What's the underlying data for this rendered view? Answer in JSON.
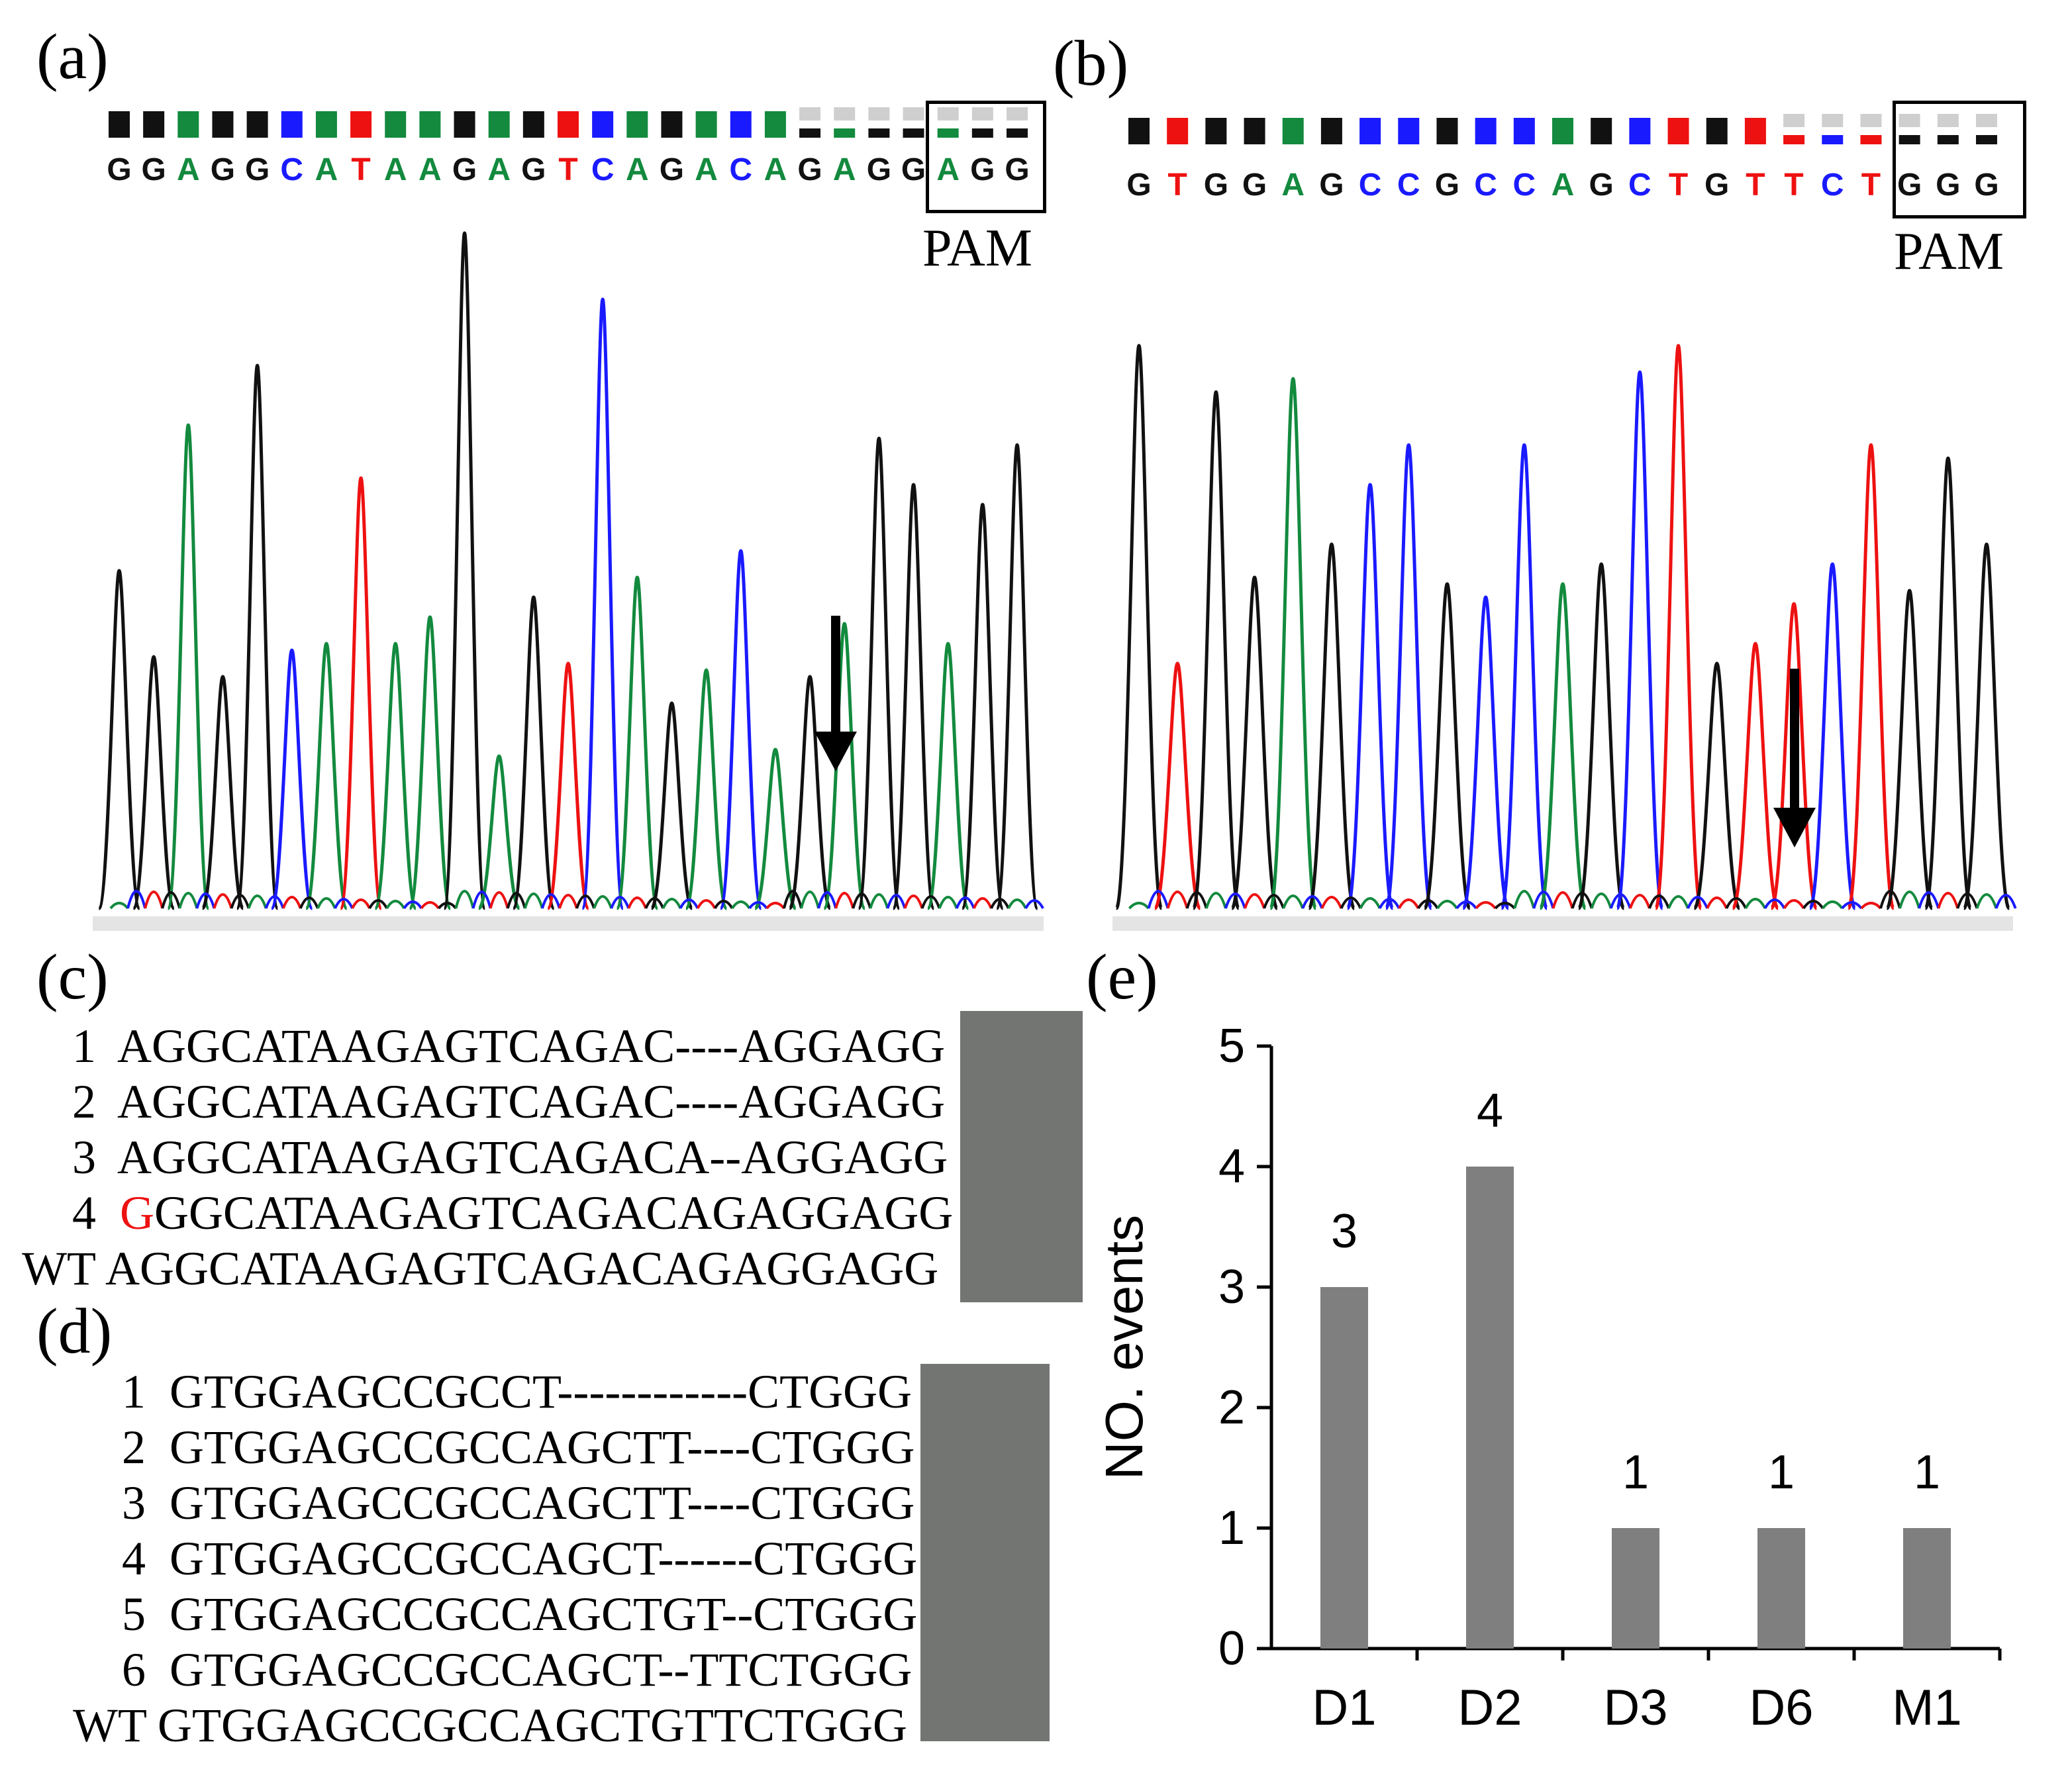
{
  "panels": {
    "a": {
      "label": "(a)",
      "sequence": "GGAGGCATAAGAGTCAGACAGAGGAGG",
      "pam_label": "PAM",
      "pam_start": 24
    },
    "b": {
      "label": "(b)",
      "sequence": "GTGGAGCCGCCAGCTGTTCTGGG",
      "pam_label": "PAM",
      "pam_start": 20
    },
    "c": {
      "label": "(c)",
      "rows": [
        {
          "id": "1",
          "seq": "AGGCATAAGAGTCAGAC----AGG",
          "pam": "AGG",
          "mut": ""
        },
        {
          "id": "2",
          "seq": "AGGCATAAGAGTCAGAC----AGG",
          "pam": "AGG",
          "mut": ""
        },
        {
          "id": "3",
          "seq": "AGGCATAAGAGTCAGACA--AGG",
          "pam": "AGG",
          "mut": ""
        },
        {
          "id": "4",
          "seq": "GGCATAAGAGTCAGACAGAGG",
          "pam": "AGG",
          "mut": "G"
        },
        {
          "id": "WT",
          "seq": "AGGCATAAGAGTCAGACAGAGG",
          "pam": "AGG",
          "mut": ""
        }
      ]
    },
    "d": {
      "label": "(d)",
      "rows": [
        {
          "id": "1",
          "seq": "GTGGAGCCGCCT------------CT",
          "pam": "GGG"
        },
        {
          "id": "2",
          "seq": "GTGGAGCCGCCAGCTT----CT",
          "pam": "GGG"
        },
        {
          "id": "3",
          "seq": "GTGGAGCCGCCAGCTT----CT",
          "pam": "GGG"
        },
        {
          "id": "4",
          "seq": "GTGGAGCCGCCAGCT------CT",
          "pam": "GGG"
        },
        {
          "id": "5",
          "seq": "GTGGAGCCGCCAGCTGT--CT",
          "pam": "GGG"
        },
        {
          "id": "6",
          "seq": "GTGGAGCCGCCAGCT--TTCT",
          "pam": "GGG"
        },
        {
          "id": "WT",
          "seq": "GTGGAGCCGCCAGCTGTTCT",
          "pam": "GGG"
        }
      ]
    },
    "e": {
      "label": "(e)"
    }
  },
  "colors": {
    "A": "#138a3e",
    "C": "#1a1aff",
    "G": "#111111",
    "T": "#ee1111",
    "mutation": "#ee1111",
    "bar": "#7f7f7f",
    "pam_shade": "#737573"
  },
  "chart_data": {
    "type": "bar",
    "categories": [
      "D1",
      "D2",
      "D3",
      "D6",
      "M1"
    ],
    "values": [
      3,
      4,
      1,
      1,
      1
    ],
    "data_labels": [
      "3",
      "4",
      "1",
      "1",
      "1"
    ],
    "title": "",
    "xlabel": "",
    "ylabel": "NO. events",
    "ylim": [
      0,
      5
    ],
    "yticks": [
      "0",
      "1",
      "2",
      "3",
      "4",
      "5"
    ],
    "grid": false,
    "legend": "none"
  }
}
